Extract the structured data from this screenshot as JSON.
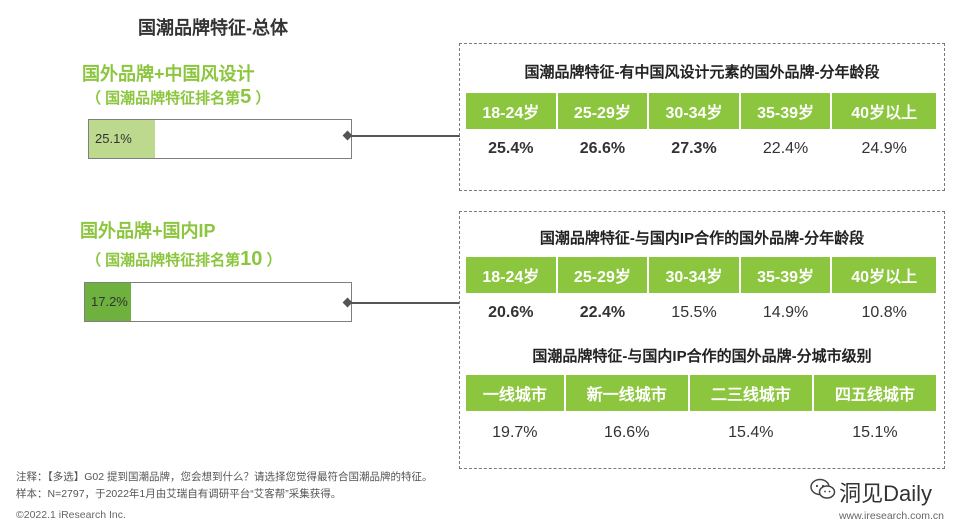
{
  "page_title": "国潮品牌特征-总体",
  "left": [
    {
      "title": "国外品牌+中国风设计",
      "rank_prefix": "（ 国潮品牌特征排名第",
      "rank_num": "5",
      "rank_suffix": " ）",
      "bar_label": "25.1%",
      "bar_value": 25.1,
      "bar_color": "#bcd98d"
    },
    {
      "title": "国外品牌+国内IP",
      "rank_prefix": "（ 国潮品牌特征排名第",
      "rank_num": "10",
      "rank_suffix": " ）",
      "bar_label": "17.2%",
      "bar_value": 17.2,
      "bar_color": "#6fb13e"
    }
  ],
  "panel1": {
    "title": "国潮品牌特征-有中国风设计元素的国外品牌-分年龄段",
    "headers": [
      "18-24岁",
      "25-29岁",
      "30-34岁",
      "35-39岁",
      "40岁以上"
    ],
    "values": [
      "25.4%",
      "26.6%",
      "27.3%",
      "22.4%",
      "24.9%"
    ],
    "bold": [
      true,
      true,
      true,
      false,
      false
    ]
  },
  "panel2": {
    "title": "国潮品牌特征-与国内IP合作的国外品牌-分年龄段",
    "headers": [
      "18-24岁",
      "25-29岁",
      "30-34岁",
      "35-39岁",
      "40岁以上"
    ],
    "values": [
      "20.6%",
      "22.4%",
      "15.5%",
      "14.9%",
      "10.8%"
    ],
    "bold": [
      true,
      true,
      false,
      false,
      false
    ]
  },
  "panel3": {
    "title": "国潮品牌特征-与国内IP合作的国外品牌-分城市级别",
    "headers": [
      "一线城市",
      "新一线城市",
      "二三线城市",
      "四五线城市"
    ],
    "values": [
      "19.7%",
      "16.6%",
      "15.4%",
      "15.1%"
    ],
    "bold": [
      false,
      false,
      false,
      false
    ]
  },
  "notes": {
    "line1": "注释：【多选】G02  提到国潮品牌，您会想到什么？请选择您觉得最符合国潮品牌的特征。",
    "line2": "样本：N=2797，于2022年1月由艾瑞自有调研平台“艾客帮”采集获得。"
  },
  "footer": {
    "copyright": "©2022.1 iResearch Inc.",
    "url": "www.iresearch.com.cn",
    "brand": "洞见Daily"
  },
  "chart_data": [
    {
      "type": "table",
      "title": "国潮品牌特征-有中国风设计元素的国外品牌-分年龄段",
      "categories": [
        "18-24岁",
        "25-29岁",
        "30-34岁",
        "35-39岁",
        "40岁以上"
      ],
      "values": [
        25.4,
        26.6,
        27.3,
        22.4,
        24.9
      ]
    },
    {
      "type": "table",
      "title": "国潮品牌特征-与国内IP合作的国外品牌-分年龄段",
      "categories": [
        "18-24岁",
        "25-29岁",
        "30-34岁",
        "35-39岁",
        "40岁以上"
      ],
      "values": [
        20.6,
        22.4,
        15.5,
        14.9,
        10.8
      ]
    },
    {
      "type": "table",
      "title": "国潮品牌特征-与国内IP合作的国外品牌-分城市级别",
      "categories": [
        "一线城市",
        "新一线城市",
        "二三线城市",
        "四五线城市"
      ],
      "values": [
        19.7,
        16.6,
        15.4,
        15.1
      ]
    },
    {
      "type": "bar",
      "categories": [
        "国外品牌+中国风设计",
        "国外品牌+国内IP"
      ],
      "values": [
        25.1,
        17.2
      ]
    }
  ]
}
